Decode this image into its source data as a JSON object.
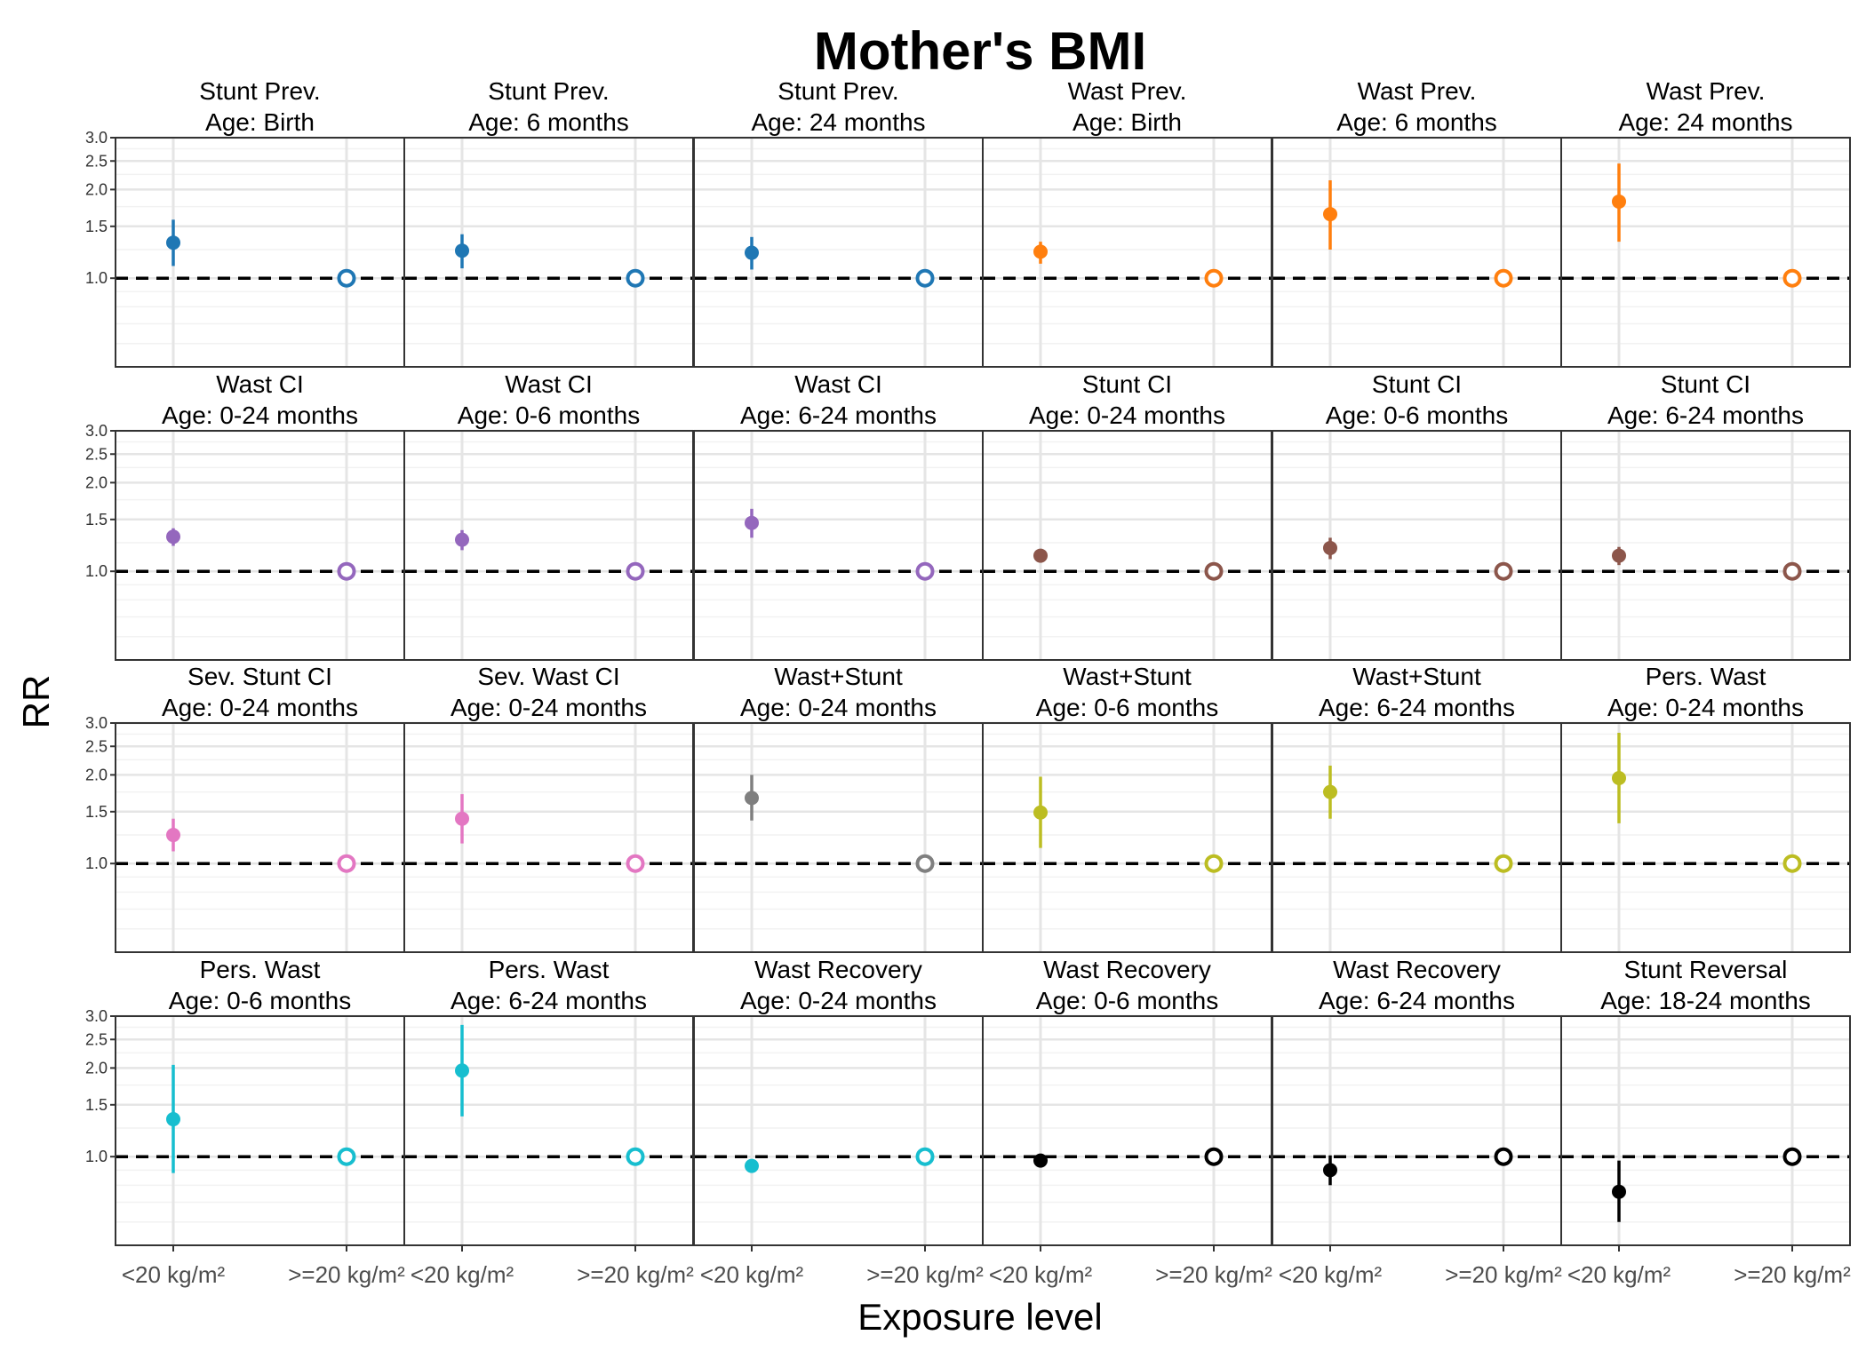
{
  "chart_data": {
    "type": "scatter",
    "subtype": "faceted-point-range",
    "title": "Mother's BMI",
    "xlabel": "Exposure level",
    "ylabel": "RR",
    "y_scale": "log",
    "ylim": [
      0.5,
      3.0
    ],
    "y_ticks": [
      "1.0",
      "1.5",
      "2.0",
      "2.5",
      "3.0"
    ],
    "categories": [
      "<20 kg/m²",
      ">=20 kg/m²"
    ],
    "reference_line": 1.0,
    "legend": "none",
    "colors": {
      "blue": "#1F77B4",
      "orange": "#FF7F0E",
      "purple": "#9467BD",
      "brown": "#8C564B",
      "pink": "#E377C2",
      "grey": "#7F7F7F",
      "olive": "#BCBD22",
      "cyan": "#17BECF",
      "black": "#000000"
    },
    "panels": [
      {
        "outcome": "Stunt Prev.",
        "age": "Age: Birth",
        "color": "#1F77B4",
        "est": 1.32,
        "lo": 1.1,
        "hi": 1.58
      },
      {
        "outcome": "Stunt Prev.",
        "age": "Age: 6 months",
        "color": "#1F77B4",
        "est": 1.24,
        "lo": 1.08,
        "hi": 1.41
      },
      {
        "outcome": "Stunt Prev.",
        "age": "Age: 24 months",
        "color": "#1F77B4",
        "est": 1.22,
        "lo": 1.07,
        "hi": 1.38
      },
      {
        "outcome": "Wast Prev.",
        "age": "Age: Birth",
        "color": "#FF7F0E",
        "est": 1.23,
        "lo": 1.12,
        "hi": 1.33
      },
      {
        "outcome": "Wast Prev.",
        "age": "Age: 6 months",
        "color": "#FF7F0E",
        "est": 1.65,
        "lo": 1.25,
        "hi": 2.15
      },
      {
        "outcome": "Wast Prev.",
        "age": "Age: 24 months",
        "color": "#FF7F0E",
        "est": 1.82,
        "lo": 1.33,
        "hi": 2.45
      },
      {
        "outcome": "Wast CI",
        "age": "Age: 0-24 months",
        "color": "#9467BD",
        "est": 1.31,
        "lo": 1.22,
        "hi": 1.4
      },
      {
        "outcome": "Wast CI",
        "age": "Age: 0-6 months",
        "color": "#9467BD",
        "est": 1.28,
        "lo": 1.18,
        "hi": 1.38
      },
      {
        "outcome": "Wast CI",
        "age": "Age: 6-24 months",
        "color": "#9467BD",
        "est": 1.46,
        "lo": 1.3,
        "hi": 1.63
      },
      {
        "outcome": "Stunt CI",
        "age": "Age: 0-24 months",
        "color": "#8C564B",
        "est": 1.13,
        "lo": 1.08,
        "hi": 1.19
      },
      {
        "outcome": "Stunt CI",
        "age": "Age: 0-6 months",
        "color": "#8C564B",
        "est": 1.2,
        "lo": 1.1,
        "hi": 1.3
      },
      {
        "outcome": "Stunt CI",
        "age": "Age: 6-24 months",
        "color": "#8C564B",
        "est": 1.13,
        "lo": 1.05,
        "hi": 1.21
      },
      {
        "outcome": "Sev. Stunt CI",
        "age": "Age: 0-24 months",
        "color": "#E377C2",
        "est": 1.25,
        "lo": 1.1,
        "hi": 1.42
      },
      {
        "outcome": "Sev. Wast CI",
        "age": "Age: 0-24 months",
        "color": "#E377C2",
        "est": 1.42,
        "lo": 1.17,
        "hi": 1.72
      },
      {
        "outcome": "Wast+Stunt",
        "age": "Age: 0-24 months",
        "color": "#7F7F7F",
        "est": 1.67,
        "lo": 1.4,
        "hi": 2.0
      },
      {
        "outcome": "Wast+Stunt",
        "age": "Age: 0-6 months",
        "color": "#BCBD22",
        "est": 1.49,
        "lo": 1.13,
        "hi": 1.97
      },
      {
        "outcome": "Wast+Stunt",
        "age": "Age: 6-24 months",
        "color": "#BCBD22",
        "est": 1.75,
        "lo": 1.42,
        "hi": 2.15
      },
      {
        "outcome": "Pers. Wast",
        "age": "Age: 0-24 months",
        "color": "#BCBD22",
        "est": 1.95,
        "lo": 1.37,
        "hi": 2.78
      },
      {
        "outcome": "Pers. Wast",
        "age": "Age: 0-6 months",
        "color": "#17BECF",
        "est": 1.34,
        "lo": 0.88,
        "hi": 2.05
      },
      {
        "outcome": "Pers. Wast",
        "age": "Age: 6-24 months",
        "color": "#17BECF",
        "est": 1.96,
        "lo": 1.37,
        "hi": 2.8
      },
      {
        "outcome": "Wast Recovery",
        "age": "Age: 0-24 months",
        "color": "#17BECF",
        "est": 0.93,
        "lo": 0.92,
        "hi": 0.94
      },
      {
        "outcome": "Wast Recovery",
        "age": "Age: 0-6 months",
        "color": "#000000",
        "est": 0.97,
        "lo": 0.95,
        "hi": 0.99
      },
      {
        "outcome": "Wast Recovery",
        "age": "Age: 6-24 months",
        "color": "#000000",
        "est": 0.9,
        "lo": 0.8,
        "hi": 1.01
      },
      {
        "outcome": "Stunt Reversal",
        "age": "Age: 18-24 months",
        "color": "#000000",
        "est": 0.76,
        "lo": 0.6,
        "hi": 0.97
      }
    ]
  }
}
